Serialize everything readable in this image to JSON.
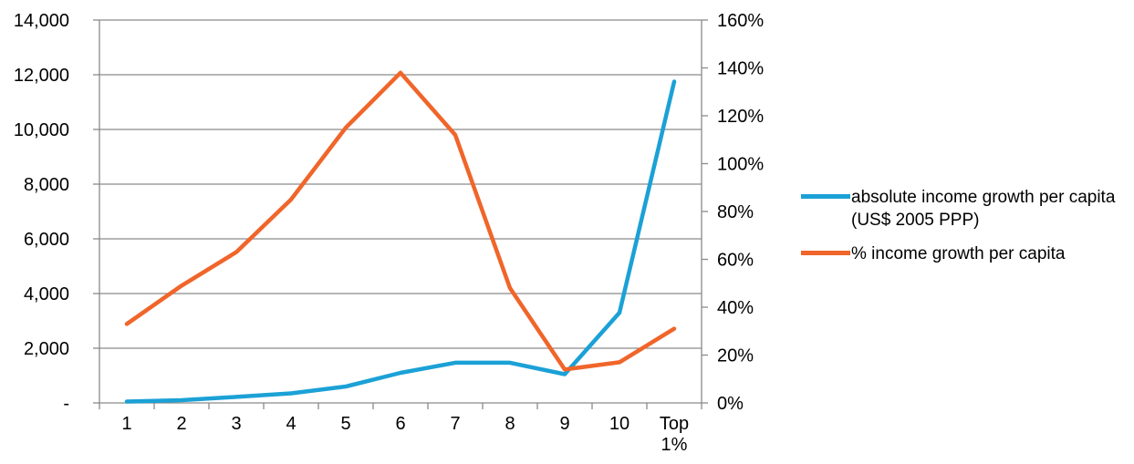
{
  "chart_data": {
    "type": "line",
    "categories": [
      "1",
      "2",
      "3",
      "4",
      "5",
      "6",
      "7",
      "8",
      "9",
      "10",
      "Top 1%"
    ],
    "series": [
      {
        "name": "absolute income growth per capita (US$ 2005 PPP)",
        "axis": "left",
        "color": "#1BA1D6",
        "values": [
          50,
          100,
          220,
          350,
          600,
          1100,
          1470,
          1470,
          1050,
          3300,
          11750
        ]
      },
      {
        "name": "% income growth per capita",
        "axis": "right",
        "color": "#F0652A",
        "values": [
          33,
          49,
          63,
          85,
          115,
          138,
          112,
          48,
          14,
          17,
          31
        ]
      }
    ],
    "y_left": {
      "min": 0,
      "max": 14000,
      "ticks": [
        "-",
        "2,000",
        "4,000",
        "6,000",
        "8,000",
        "10,000",
        "12,000",
        "14,000"
      ],
      "tick_values": [
        0,
        2000,
        4000,
        6000,
        8000,
        10000,
        12000,
        14000
      ]
    },
    "y_right": {
      "min": 0,
      "max": 160,
      "ticks": [
        "0%",
        "20%",
        "40%",
        "60%",
        "80%",
        "100%",
        "120%",
        "140%",
        "160%"
      ],
      "tick_values": [
        0,
        20,
        40,
        60,
        80,
        100,
        120,
        140,
        160
      ]
    },
    "grid": "horizontal",
    "legend_position": "right",
    "title": "",
    "xlabel": "",
    "ylabel": ""
  }
}
